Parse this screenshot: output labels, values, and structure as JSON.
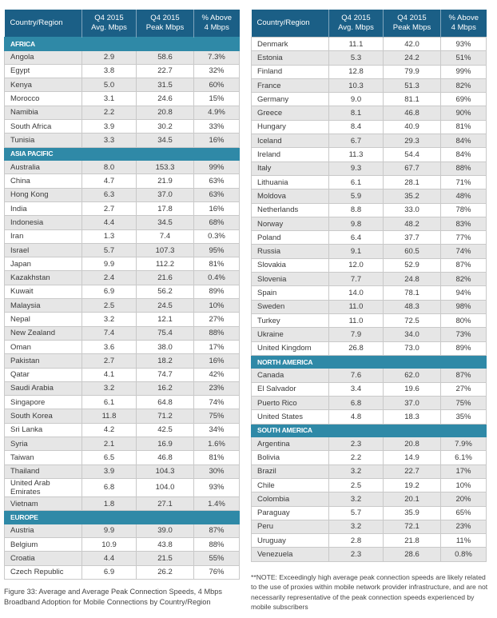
{
  "columns": [
    "Country/Region",
    "Q4 2015\nAvg. Mbps",
    "Q4 2015\nPeak Mbps",
    "% Above\n4 Mbps"
  ],
  "caption": "Figure 33: Average and Average Peak Connection Speeds, 4 Mbps Broadband Adoption for Mobile Connections by Country/Region",
  "note": "**NOTE: Exceedingly high average peak connection speeds are likely related to the use of proxies within mobile network provider infrastructure, and are not necessarily representative of the peak connection speeds experienced by mobile subscribers",
  "left_table": [
    {
      "region": "AFRICA"
    },
    {
      "country": "Angola",
      "avg": "2.9",
      "peak": "58.6",
      "pct": "7.3%"
    },
    {
      "country": "Egypt",
      "avg": "3.8",
      "peak": "22.7",
      "pct": "32%"
    },
    {
      "country": "Kenya",
      "avg": "5.0",
      "peak": "31.5",
      "pct": "60%"
    },
    {
      "country": "Morocco",
      "avg": "3.1",
      "peak": "24.6",
      "pct": "15%"
    },
    {
      "country": "Namibia",
      "avg": "2.2",
      "peak": "20.8",
      "pct": "4.9%"
    },
    {
      "country": "South Africa",
      "avg": "3.9",
      "peak": "30.2",
      "pct": "33%"
    },
    {
      "country": "Tunisia",
      "avg": "3.3",
      "peak": "34.5",
      "pct": "16%"
    },
    {
      "region": "ASIA PACIFIC"
    },
    {
      "country": "Australia",
      "avg": "8.0",
      "peak": "153.3",
      "pct": "99%"
    },
    {
      "country": "China",
      "avg": "4.7",
      "peak": "21.9",
      "pct": "63%"
    },
    {
      "country": "Hong Kong",
      "avg": "6.3",
      "peak": "37.0",
      "pct": "63%"
    },
    {
      "country": "India",
      "avg": "2.7",
      "peak": "17.8",
      "pct": "16%"
    },
    {
      "country": "Indonesia",
      "avg": "4.4",
      "peak": "34.5",
      "pct": "68%"
    },
    {
      "country": "Iran",
      "avg": "1.3",
      "peak": "7.4",
      "pct": "0.3%"
    },
    {
      "country": "Israel",
      "avg": "5.7",
      "peak": "107.3",
      "pct": "95%"
    },
    {
      "country": "Japan",
      "avg": "9.9",
      "peak": "112.2",
      "pct": "81%"
    },
    {
      "country": "Kazakhstan",
      "avg": "2.4",
      "peak": "21.6",
      "pct": "0.4%"
    },
    {
      "country": "Kuwait",
      "avg": "6.9",
      "peak": "56.2",
      "pct": "89%"
    },
    {
      "country": "Malaysia",
      "avg": "2.5",
      "peak": "24.5",
      "pct": "10%"
    },
    {
      "country": "Nepal",
      "avg": "3.2",
      "peak": "12.1",
      "pct": "27%"
    },
    {
      "country": "New Zealand",
      "avg": "7.4",
      "peak": "75.4",
      "pct": "88%"
    },
    {
      "country": "Oman",
      "avg": "3.6",
      "peak": "38.0",
      "pct": "17%"
    },
    {
      "country": "Pakistan",
      "avg": "2.7",
      "peak": "18.2",
      "pct": "16%"
    },
    {
      "country": "Qatar",
      "avg": "4.1",
      "peak": "74.7",
      "pct": "42%"
    },
    {
      "country": "Saudi Arabia",
      "avg": "3.2",
      "peak": "16.2",
      "pct": "23%"
    },
    {
      "country": "Singapore",
      "avg": "6.1",
      "peak": "64.8",
      "pct": "74%"
    },
    {
      "country": "South Korea",
      "avg": "11.8",
      "peak": "71.2",
      "pct": "75%"
    },
    {
      "country": "Sri Lanka",
      "avg": "4.2",
      "peak": "42.5",
      "pct": "34%"
    },
    {
      "country": "Syria",
      "avg": "2.1",
      "peak": "16.9",
      "pct": "1.6%"
    },
    {
      "country": "Taiwan",
      "avg": "6.5",
      "peak": "46.8",
      "pct": "81%"
    },
    {
      "country": "Thailand",
      "avg": "3.9",
      "peak": "104.3",
      "pct": "30%"
    },
    {
      "country": "United Arab Emirates",
      "avg": "6.8",
      "peak": "104.0",
      "pct": "93%"
    },
    {
      "country": "Vietnam",
      "avg": "1.8",
      "peak": "27.1",
      "pct": "1.4%"
    },
    {
      "region": "EUROPE"
    },
    {
      "country": "Austria",
      "avg": "9.9",
      "peak": "39.0",
      "pct": "87%"
    },
    {
      "country": "Belgium",
      "avg": "10.9",
      "peak": "43.8",
      "pct": "88%"
    },
    {
      "country": "Croatia",
      "avg": "4.4",
      "peak": "21.5",
      "pct": "55%"
    },
    {
      "country": "Czech Republic",
      "avg": "6.9",
      "peak": "26.2",
      "pct": "76%"
    }
  ],
  "right_table": [
    {
      "country": "Denmark",
      "avg": "11.1",
      "peak": "42.0",
      "pct": "93%"
    },
    {
      "country": "Estonia",
      "avg": "5.3",
      "peak": "24.2",
      "pct": "51%"
    },
    {
      "country": "Finland",
      "avg": "12.8",
      "peak": "79.9",
      "pct": "99%"
    },
    {
      "country": "France",
      "avg": "10.3",
      "peak": "51.3",
      "pct": "82%"
    },
    {
      "country": "Germany",
      "avg": "9.0",
      "peak": "81.1",
      "pct": "69%"
    },
    {
      "country": "Greece",
      "avg": "8.1",
      "peak": "46.8",
      "pct": "90%"
    },
    {
      "country": "Hungary",
      "avg": "8.4",
      "peak": "40.9",
      "pct": "81%"
    },
    {
      "country": "Iceland",
      "avg": "6.7",
      "peak": "29.3",
      "pct": "84%"
    },
    {
      "country": "Ireland",
      "avg": "11.3",
      "peak": "54.4",
      "pct": "84%"
    },
    {
      "country": "Italy",
      "avg": "9.3",
      "peak": "67.7",
      "pct": "88%"
    },
    {
      "country": "Lithuania",
      "avg": "6.1",
      "peak": "28.1",
      "pct": "71%"
    },
    {
      "country": "Moldova",
      "avg": "5.9",
      "peak": "35.2",
      "pct": "48%"
    },
    {
      "country": "Netherlands",
      "avg": "8.8",
      "peak": "33.0",
      "pct": "78%"
    },
    {
      "country": "Norway",
      "avg": "9.8",
      "peak": "48.2",
      "pct": "83%"
    },
    {
      "country": "Poland",
      "avg": "6.4",
      "peak": "37.7",
      "pct": "77%"
    },
    {
      "country": "Russia",
      "avg": "9.1",
      "peak": "60.5",
      "pct": "74%"
    },
    {
      "country": "Slovakia",
      "avg": "12.0",
      "peak": "52.9",
      "pct": "87%"
    },
    {
      "country": "Slovenia",
      "avg": "7.7",
      "peak": "24.8",
      "pct": "82%"
    },
    {
      "country": "Spain",
      "avg": "14.0",
      "peak": "78.1",
      "pct": "94%"
    },
    {
      "country": "Sweden",
      "avg": "11.0",
      "peak": "48.3",
      "pct": "98%"
    },
    {
      "country": "Turkey",
      "avg": "11.0",
      "peak": "72.5",
      "pct": "80%"
    },
    {
      "country": "Ukraine",
      "avg": "7.9",
      "peak": "34.0",
      "pct": "73%"
    },
    {
      "country": "United Kingdom",
      "avg": "26.8",
      "peak": "73.0",
      "pct": "89%"
    },
    {
      "region": "NORTH AMERICA"
    },
    {
      "country": "Canada",
      "avg": "7.6",
      "peak": "62.0",
      "pct": "87%"
    },
    {
      "country": "El Salvador",
      "avg": "3.4",
      "peak": "19.6",
      "pct": "27%"
    },
    {
      "country": "Puerto Rico",
      "avg": "6.8",
      "peak": "37.0",
      "pct": "75%"
    },
    {
      "country": "United States",
      "avg": "4.8",
      "peak": "18.3",
      "pct": "35%"
    },
    {
      "region": "SOUTH AMERICA"
    },
    {
      "country": "Argentina",
      "avg": "2.3",
      "peak": "20.8",
      "pct": "7.9%"
    },
    {
      "country": "Bolivia",
      "avg": "2.2",
      "peak": "14.9",
      "pct": "6.1%"
    },
    {
      "country": "Brazil",
      "avg": "3.2",
      "peak": "22.7",
      "pct": "17%"
    },
    {
      "country": "Chile",
      "avg": "2.5",
      "peak": "19.2",
      "pct": "10%"
    },
    {
      "country": "Colombia",
      "avg": "3.2",
      "peak": "20.1",
      "pct": "20%"
    },
    {
      "country": "Paraguay",
      "avg": "5.7",
      "peak": "35.9",
      "pct": "65%"
    },
    {
      "country": "Peru",
      "avg": "3.2",
      "peak": "72.1",
      "pct": "23%"
    },
    {
      "country": "Uruguay",
      "avg": "2.8",
      "peak": "21.8",
      "pct": "11%"
    },
    {
      "country": "Venezuela",
      "avg": "2.3",
      "peak": "28.6",
      "pct": "0.8%"
    }
  ],
  "colors": {
    "header_bg": "#1b5f86",
    "region_bg": "#2f89a7",
    "shaded_row": "#e6e6e6",
    "border": "#c9c9c9"
  }
}
